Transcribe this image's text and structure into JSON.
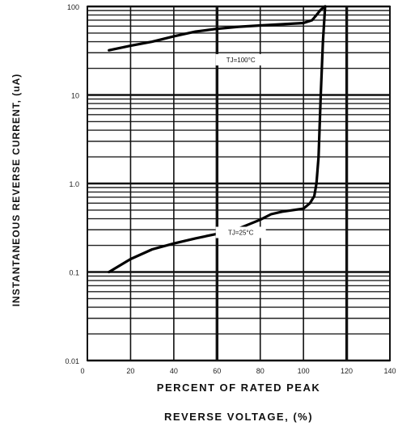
{
  "chart_data": {
    "type": "line",
    "title": "",
    "xlabel_line1": "PERCENT OF RATED PEAK",
    "xlabel_line2": "REVERSE VOLTAGE, (%)",
    "ylabel": "INSTANTANEOUS REVERSE CURRENT, (uA)",
    "xlim": [
      0,
      140
    ],
    "ylim": [
      0.01,
      100
    ],
    "yscale": "log",
    "grid": true,
    "x_ticks": [
      "0",
      "20",
      "40",
      "60",
      "80",
      "100",
      "120",
      "140"
    ],
    "y_ticks": [
      "0.01",
      "0.1",
      "1.0",
      "10",
      "100"
    ],
    "series": [
      {
        "name": "TJ=100°C",
        "x": [
          10,
          20,
          30,
          40,
          50,
          60,
          70,
          80,
          90,
          100,
          104,
          106,
          108,
          110
        ],
        "y": [
          32,
          36,
          40,
          46,
          52,
          56,
          59,
          61,
          63,
          65,
          70,
          80,
          92,
          100
        ]
      },
      {
        "name": "TJ=25°C",
        "x": [
          10,
          20,
          30,
          40,
          50,
          60,
          70,
          80,
          85,
          90,
          100,
          103,
          105,
          106,
          107,
          108,
          109,
          110
        ],
        "y": [
          0.1,
          0.14,
          0.18,
          0.21,
          0.24,
          0.27,
          0.31,
          0.39,
          0.45,
          0.48,
          0.52,
          0.6,
          0.72,
          1.0,
          2.0,
          10,
          40,
          100
        ]
      }
    ],
    "annotations": [
      {
        "text": "TJ=100°C",
        "x": 71,
        "y": 25
      },
      {
        "text": "TJ=25°C",
        "x": 71,
        "y": 0.28
      }
    ]
  }
}
